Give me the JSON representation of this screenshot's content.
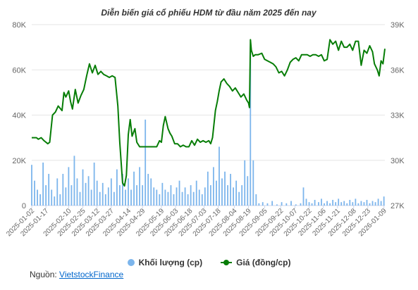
{
  "chart_data": {
    "type": "bar+line",
    "title": "Diễn biến giá cổ phiếu HDM từ đầu năm 2025 đến nay",
    "left_axis": {
      "ticks": [
        "0",
        "20K",
        "40K",
        "60K",
        "80K"
      ],
      "values": [
        0,
        20000,
        40000,
        60000,
        80000
      ],
      "range": [
        0,
        80000
      ]
    },
    "right_axis": {
      "ticks": [
        "27K",
        "30K",
        "33K",
        "36K",
        "39K"
      ],
      "values": [
        27000,
        30000,
        33000,
        36000,
        39000
      ],
      "range": [
        27000,
        39000
      ]
    },
    "x_date_range": [
      "2025-01-02",
      "2026-01-10"
    ],
    "x_tick_labels": [
      "2025-01-02",
      "2025-01-17",
      "2025-02-10",
      "2025-02-25",
      "2025-03-12",
      "2025-03-27",
      "2025-04-14",
      "2025-04-29",
      "2025-05-19",
      "2025-06-03",
      "2025-06-18",
      "2025-07-03",
      "2025-07-18",
      "2025-08-04",
      "2025-08-19",
      "2025-09-05",
      "2025-09-22",
      "2025-10-07",
      "2025-10-22",
      "2025-11-06",
      "2025-11-21",
      "2025-12-08",
      "2025-12-23",
      "2026-01-09"
    ],
    "series": [
      {
        "name": "Khối lượng (cp)",
        "type": "bar",
        "axis": "left",
        "color": "#7cb5ec",
        "points": [
          [
            "2025-01-02",
            18000
          ],
          [
            "2025-01-05",
            11000
          ],
          [
            "2025-01-08",
            7000
          ],
          [
            "2025-01-11",
            5000
          ],
          [
            "2025-01-14",
            19000
          ],
          [
            "2025-01-17",
            9000
          ],
          [
            "2025-01-20",
            14000
          ],
          [
            "2025-01-23",
            7000
          ],
          [
            "2025-01-26",
            4000
          ],
          [
            "2025-01-29",
            12000
          ],
          [
            "2025-02-01",
            5000
          ],
          [
            "2025-02-04",
            14000
          ],
          [
            "2025-02-07",
            8000
          ],
          [
            "2025-02-10",
            17000
          ],
          [
            "2025-02-13",
            9000
          ],
          [
            "2025-02-16",
            22000
          ],
          [
            "2025-02-19",
            12000
          ],
          [
            "2025-02-22",
            6000
          ],
          [
            "2025-02-25",
            16000
          ],
          [
            "2025-02-28",
            10000
          ],
          [
            "2025-03-03",
            13000
          ],
          [
            "2025-03-06",
            7000
          ],
          [
            "2025-03-09",
            19000
          ],
          [
            "2025-03-12",
            11000
          ],
          [
            "2025-03-15",
            6000
          ],
          [
            "2025-03-18",
            10000
          ],
          [
            "2025-03-21",
            5000
          ],
          [
            "2025-03-24",
            8000
          ],
          [
            "2025-03-27",
            12000
          ],
          [
            "2025-03-30",
            6000
          ],
          [
            "2025-04-02",
            16000
          ],
          [
            "2025-04-05",
            9000
          ],
          [
            "2025-04-08",
            14000
          ],
          [
            "2025-04-11",
            7000
          ],
          [
            "2025-04-14",
            12000
          ],
          [
            "2025-04-17",
            7000
          ],
          [
            "2025-04-20",
            15000
          ],
          [
            "2025-04-23",
            9000
          ],
          [
            "2025-04-26",
            17000
          ],
          [
            "2025-04-29",
            9000
          ],
          [
            "2025-05-02",
            38000
          ],
          [
            "2025-05-05",
            14000
          ],
          [
            "2025-05-08",
            12000
          ],
          [
            "2025-05-11",
            8000
          ],
          [
            "2025-05-14",
            7000
          ],
          [
            "2025-05-17",
            5000
          ],
          [
            "2025-05-20",
            10000
          ],
          [
            "2025-05-23",
            7000
          ],
          [
            "2025-05-26",
            6000
          ],
          [
            "2025-05-29",
            9000
          ],
          [
            "2025-06-01",
            5000
          ],
          [
            "2025-06-04",
            8000
          ],
          [
            "2025-06-07",
            11000
          ],
          [
            "2025-06-10",
            6000
          ],
          [
            "2025-06-13",
            8000
          ],
          [
            "2025-06-16",
            5000
          ],
          [
            "2025-06-19",
            9000
          ],
          [
            "2025-06-22",
            6000
          ],
          [
            "2025-06-25",
            11000
          ],
          [
            "2025-06-28",
            7000
          ],
          [
            "2025-07-01",
            5000
          ],
          [
            "2025-07-04",
            8000
          ],
          [
            "2025-07-07",
            15000
          ],
          [
            "2025-07-10",
            9000
          ],
          [
            "2025-07-13",
            17000
          ],
          [
            "2025-07-16",
            11000
          ],
          [
            "2025-07-19",
            26000
          ],
          [
            "2025-07-22",
            12000
          ],
          [
            "2025-07-25",
            15000
          ],
          [
            "2025-07-28",
            9000
          ],
          [
            "2025-07-31",
            14000
          ],
          [
            "2025-08-03",
            8000
          ],
          [
            "2025-08-06",
            11000
          ],
          [
            "2025-08-09",
            6000
          ],
          [
            "2025-08-12",
            9000
          ],
          [
            "2025-08-15",
            20000
          ],
          [
            "2025-08-18",
            13000
          ],
          [
            "2025-08-21",
            70000
          ],
          [
            "2025-08-24",
            20000
          ],
          [
            "2025-08-27",
            5000
          ],
          [
            "2025-08-30",
            1000
          ],
          [
            "2025-09-03",
            1500
          ],
          [
            "2025-09-08",
            1000
          ],
          [
            "2025-09-13",
            2000
          ],
          [
            "2025-09-18",
            500
          ],
          [
            "2025-09-23",
            1500
          ],
          [
            "2025-09-28",
            1000
          ],
          [
            "2025-10-03",
            2000
          ],
          [
            "2025-10-08",
            500
          ],
          [
            "2025-10-13",
            1000
          ],
          [
            "2025-10-16",
            8000
          ],
          [
            "2025-10-19",
            3000
          ],
          [
            "2025-10-22",
            1500
          ],
          [
            "2025-10-25",
            1000
          ],
          [
            "2025-10-28",
            2500
          ],
          [
            "2025-11-01",
            1500
          ],
          [
            "2025-11-04",
            3000
          ],
          [
            "2025-11-07",
            1000
          ],
          [
            "2025-11-10",
            2000
          ],
          [
            "2025-11-13",
            1000
          ],
          [
            "2025-11-16",
            2500
          ],
          [
            "2025-11-19",
            1500
          ],
          [
            "2025-11-22",
            3000
          ],
          [
            "2025-11-25",
            1500
          ],
          [
            "2025-11-28",
            2000
          ],
          [
            "2025-12-01",
            1000
          ],
          [
            "2025-12-04",
            2500
          ],
          [
            "2025-12-07",
            1500
          ],
          [
            "2025-12-10",
            3000
          ],
          [
            "2025-12-13",
            1000
          ],
          [
            "2025-12-16",
            2000
          ],
          [
            "2025-12-19",
            1500
          ],
          [
            "2025-12-22",
            2500
          ],
          [
            "2025-12-25",
            1000
          ],
          [
            "2025-12-28",
            2000
          ],
          [
            "2025-12-31",
            1500
          ],
          [
            "2026-01-03",
            3000
          ],
          [
            "2026-01-06",
            2000
          ],
          [
            "2026-01-09",
            4000
          ]
        ]
      },
      {
        "name": "Giá (đồng/cp)",
        "type": "line",
        "axis": "right",
        "color": "#067d06",
        "points": [
          [
            "2025-01-02",
            31500
          ],
          [
            "2025-01-07",
            31500
          ],
          [
            "2025-01-09",
            31400
          ],
          [
            "2025-01-12",
            31500
          ],
          [
            "2025-01-15",
            31300
          ],
          [
            "2025-01-19",
            31100
          ],
          [
            "2025-01-21",
            31200
          ],
          [
            "2025-01-24",
            33000
          ],
          [
            "2025-01-27",
            33200
          ],
          [
            "2025-01-30",
            33600
          ],
          [
            "2025-02-03",
            33300
          ],
          [
            "2025-02-05",
            34500
          ],
          [
            "2025-02-07",
            34200
          ],
          [
            "2025-02-10",
            34600
          ],
          [
            "2025-02-12",
            33900
          ],
          [
            "2025-02-14",
            33400
          ],
          [
            "2025-02-17",
            34700
          ],
          [
            "2025-02-20",
            33800
          ],
          [
            "2025-02-23",
            34300
          ],
          [
            "2025-02-26",
            34700
          ],
          [
            "2025-03-01",
            35600
          ],
          [
            "2025-03-04",
            36400
          ],
          [
            "2025-03-07",
            35800
          ],
          [
            "2025-03-10",
            36300
          ],
          [
            "2025-03-13",
            35700
          ],
          [
            "2025-03-16",
            35900
          ],
          [
            "2025-03-19",
            35700
          ],
          [
            "2025-03-22",
            35600
          ],
          [
            "2025-03-25",
            35500
          ],
          [
            "2025-03-28",
            35600
          ],
          [
            "2025-03-31",
            35500
          ],
          [
            "2025-04-03",
            33600
          ],
          [
            "2025-04-05",
            31200
          ],
          [
            "2025-04-08",
            28500
          ],
          [
            "2025-04-10",
            28300
          ],
          [
            "2025-04-12",
            29000
          ],
          [
            "2025-04-14",
            31700
          ],
          [
            "2025-04-16",
            32700
          ],
          [
            "2025-04-18",
            31600
          ],
          [
            "2025-04-21",
            32100
          ],
          [
            "2025-04-23",
            31200
          ],
          [
            "2025-04-26",
            30900
          ],
          [
            "2025-04-29",
            30900
          ],
          [
            "2025-05-02",
            30900
          ],
          [
            "2025-05-06",
            30900
          ],
          [
            "2025-05-10",
            30900
          ],
          [
            "2025-05-14",
            30900
          ],
          [
            "2025-05-17",
            31300
          ],
          [
            "2025-05-19",
            31200
          ],
          [
            "2025-05-21",
            32300
          ],
          [
            "2025-05-23",
            32900
          ],
          [
            "2025-05-26",
            32100
          ],
          [
            "2025-05-28",
            31800
          ],
          [
            "2025-05-30",
            31600
          ],
          [
            "2025-06-02",
            31100
          ],
          [
            "2025-06-05",
            31100
          ],
          [
            "2025-06-08",
            30900
          ],
          [
            "2025-06-11",
            31000
          ],
          [
            "2025-06-14",
            30900
          ],
          [
            "2025-06-17",
            30900
          ],
          [
            "2025-06-20",
            31300
          ],
          [
            "2025-06-23",
            31000
          ],
          [
            "2025-06-26",
            31400
          ],
          [
            "2025-06-29",
            31200
          ],
          [
            "2025-07-02",
            31300
          ],
          [
            "2025-07-05",
            31200
          ],
          [
            "2025-07-08",
            31300
          ],
          [
            "2025-07-10",
            31100
          ],
          [
            "2025-07-12",
            31500
          ],
          [
            "2025-07-15",
            33300
          ],
          [
            "2025-07-17",
            33900
          ],
          [
            "2025-07-19",
            34600
          ],
          [
            "2025-07-21",
            35200
          ],
          [
            "2025-07-24",
            35400
          ],
          [
            "2025-07-27",
            35100
          ],
          [
            "2025-07-30",
            34900
          ],
          [
            "2025-08-02",
            34600
          ],
          [
            "2025-08-05",
            34800
          ],
          [
            "2025-08-08",
            34500
          ],
          [
            "2025-08-11",
            34200
          ],
          [
            "2025-08-14",
            34400
          ],
          [
            "2025-08-17",
            34000
          ],
          [
            "2025-08-19",
            33800
          ],
          [
            "2025-08-20",
            33500
          ],
          [
            "2025-08-21",
            38000
          ],
          [
            "2025-08-22",
            37300
          ],
          [
            "2025-08-24",
            36900
          ],
          [
            "2025-08-26",
            37000
          ],
          [
            "2025-08-29",
            37000
          ],
          [
            "2025-09-02",
            37100
          ],
          [
            "2025-09-05",
            36700
          ],
          [
            "2025-09-08",
            36600
          ],
          [
            "2025-09-11",
            36500
          ],
          [
            "2025-09-14",
            36400
          ],
          [
            "2025-09-17",
            36200
          ],
          [
            "2025-09-20",
            35800
          ],
          [
            "2025-09-23",
            35900
          ],
          [
            "2025-09-26",
            35600
          ],
          [
            "2025-09-29",
            36000
          ],
          [
            "2025-10-02",
            36500
          ],
          [
            "2025-10-05",
            36700
          ],
          [
            "2025-10-08",
            36800
          ],
          [
            "2025-10-11",
            36600
          ],
          [
            "2025-10-14",
            37000
          ],
          [
            "2025-10-17",
            37000
          ],
          [
            "2025-10-20",
            37000
          ],
          [
            "2025-10-23",
            36900
          ],
          [
            "2025-10-26",
            37000
          ],
          [
            "2025-10-29",
            37000
          ],
          [
            "2025-11-01",
            36900
          ],
          [
            "2025-11-04",
            37000
          ],
          [
            "2025-11-07",
            36600
          ],
          [
            "2025-11-10",
            36700
          ],
          [
            "2025-11-13",
            38000
          ],
          [
            "2025-11-16",
            37700
          ],
          [
            "2025-11-19",
            37900
          ],
          [
            "2025-11-22",
            37300
          ],
          [
            "2025-11-25",
            37900
          ],
          [
            "2025-11-28",
            37500
          ],
          [
            "2025-12-01",
            37500
          ],
          [
            "2025-12-04",
            37700
          ],
          [
            "2025-12-07",
            37300
          ],
          [
            "2025-12-10",
            37900
          ],
          [
            "2025-12-13",
            37900
          ],
          [
            "2025-12-16",
            36300
          ],
          [
            "2025-12-19",
            37300
          ],
          [
            "2025-12-22",
            37100
          ],
          [
            "2025-12-25",
            37600
          ],
          [
            "2025-12-28",
            37200
          ],
          [
            "2025-12-30",
            36400
          ],
          [
            "2026-01-02",
            36000
          ],
          [
            "2026-01-04",
            35600
          ],
          [
            "2026-01-06",
            36600
          ],
          [
            "2026-01-08",
            36400
          ],
          [
            "2026-01-10",
            37400
          ]
        ]
      }
    ],
    "legend": {
      "placement": "bottom-center"
    },
    "colors": {
      "grid": "#e6e6e6",
      "axis_line": "#ccd6eb"
    }
  },
  "legend_labels": {
    "volume": "Khối lượng (cp)",
    "price": "Giá (đồng/cp)"
  },
  "source": {
    "label": "Nguồn:",
    "link_text": "VietstockFinance"
  }
}
